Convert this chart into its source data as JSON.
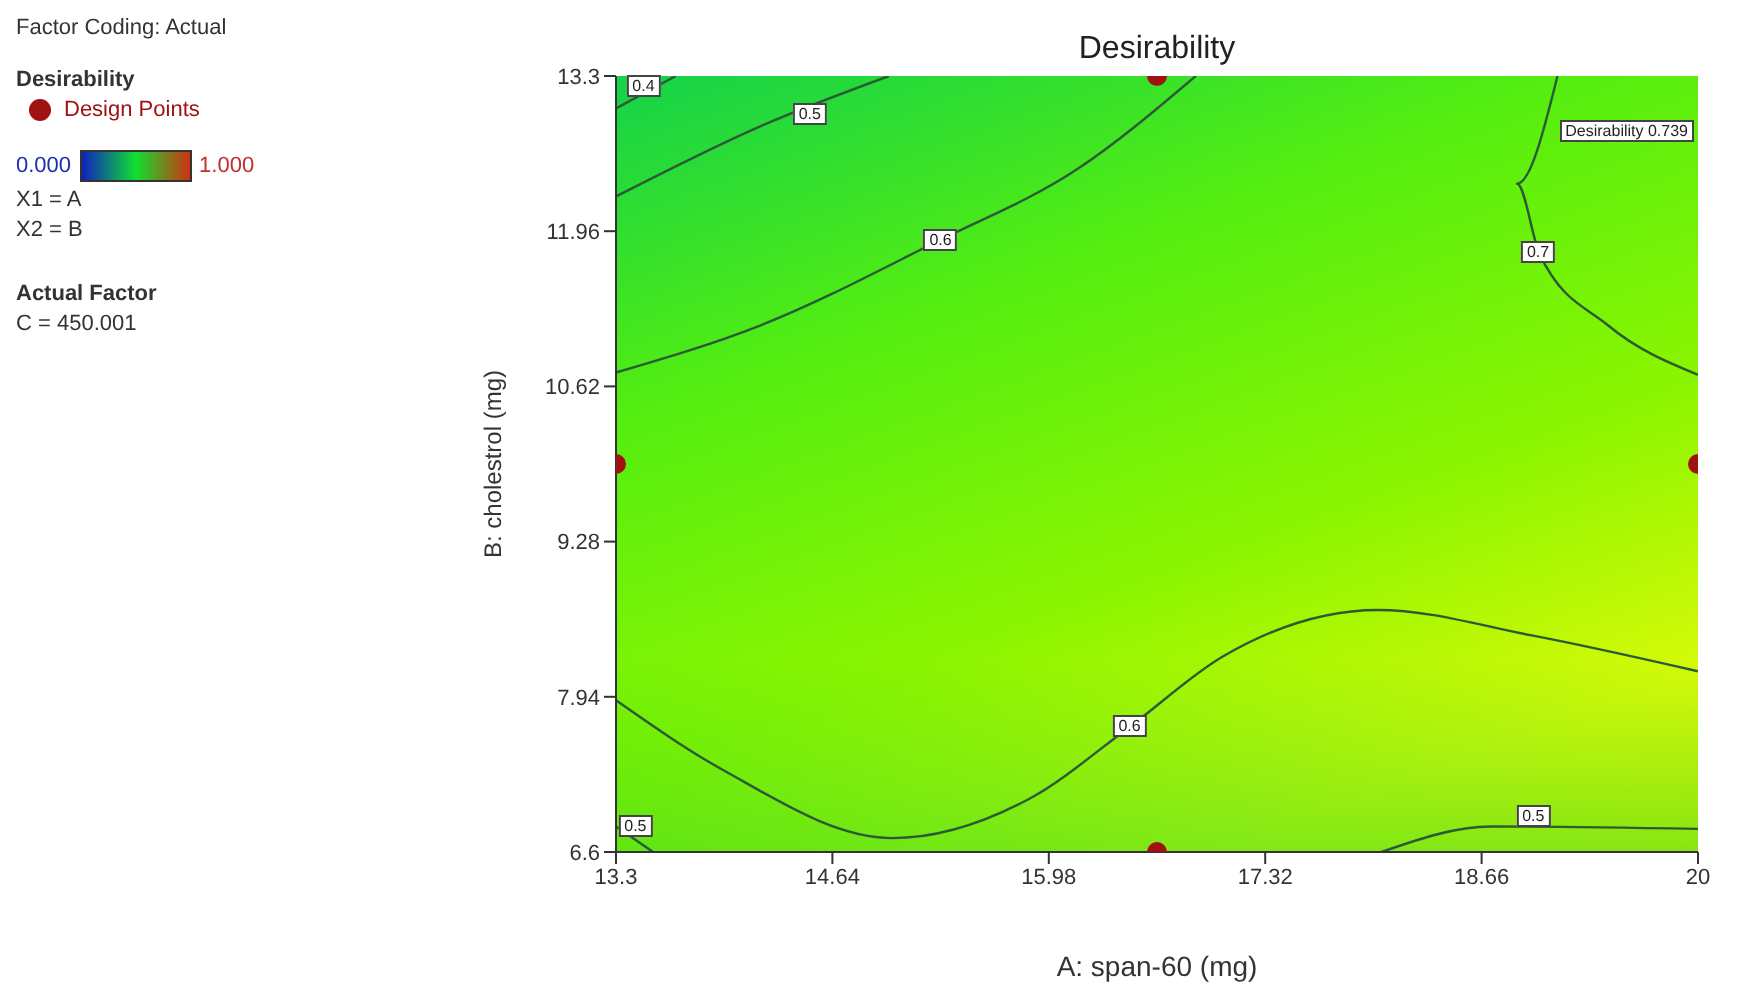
{
  "chart_data": {
    "type": "line",
    "title": "Desirability",
    "xlabel": "A: span-60 (mg)",
    "ylabel": "B: cholestrol (mg)",
    "legend_title": "Desirability",
    "legend": "left",
    "xlim": [
      13.3,
      20
    ],
    "xticks": [
      13.3,
      14.64,
      15.98,
      17.32,
      18.66,
      20
    ],
    "ylim": [
      6.6,
      13.3
    ],
    "yticks": [
      6.6,
      7.94,
      9.28,
      10.62,
      11.96,
      13.3
    ],
    "grid": false,
    "line_style": "solid",
    "marker": "none",
    "series": [
      {
        "color": "#2b5a36",
        "x": [
          13.3,
          13.67
        ],
        "values": [
          13.02,
          13.3
        ]
      },
      {
        "color": "#2b5a36",
        "x": [
          13.3,
          14.2,
          14.99
        ],
        "values": [
          12.26,
          12.87,
          13.3
        ]
      },
      {
        "color": "#2b5a36",
        "x": [
          13.3,
          14.2,
          15.3,
          16.15,
          16.89
        ],
        "values": [
          10.74,
          11.15,
          11.88,
          12.49,
          13.3
        ]
      },
      {
        "color": "#2b5a36",
        "x": [
          19.13,
          18.88,
          19.02,
          19.44,
          20
        ],
        "values": [
          13.3,
          12.37,
          11.76,
          11.15,
          10.72
        ]
      },
      {
        "color": "#2b5a36",
        "x": [
          13.3,
          13.96,
          15.01,
          15.86,
          16.48,
          17.06,
          18.02,
          18.97,
          20
        ],
        "values": [
          7.91,
          7.31,
          6.72,
          7.06,
          7.68,
          8.29,
          8.69,
          8.47,
          8.16
        ]
      },
      {
        "color": "#2b5a36",
        "x": [
          13.3,
          13.53
        ],
        "values": [
          6.82,
          6.6
        ]
      },
      {
        "color": "#2b5a36",
        "x": [
          18.04,
          18.72,
          20
        ],
        "values": [
          6.6,
          6.82,
          6.8
        ]
      },
      {
        "type": "scatter",
        "name": "Design Points",
        "color": "#a01212",
        "marker": "circle",
        "x": [
          16.65,
          13.3,
          20,
          16.65
        ],
        "values": [
          13.3,
          9.95,
          9.95,
          6.6
        ]
      }
    ],
    "annotations": [
      "Factor Coding: Actual",
      "0.000",
      "1.000",
      "X1 = A",
      "X2 = B",
      "Actual Factor",
      "C = 450.001",
      "Desirability 0.739",
      {
        "text": "0.4",
        "x": 13.47,
        "y": 13.22
      },
      {
        "text": "0.5",
        "x": 14.5,
        "y": 12.98
      },
      {
        "text": "0.6",
        "x": 15.31,
        "y": 11.88
      },
      {
        "text": "0.7",
        "x": 19.01,
        "y": 11.78
      },
      {
        "text": "0.6",
        "x": 16.48,
        "y": 7.68
      },
      {
        "text": "0.5",
        "x": 13.42,
        "y": 6.82
      },
      {
        "text": "0.5",
        "x": 18.98,
        "y": 6.91
      }
    ]
  }
}
